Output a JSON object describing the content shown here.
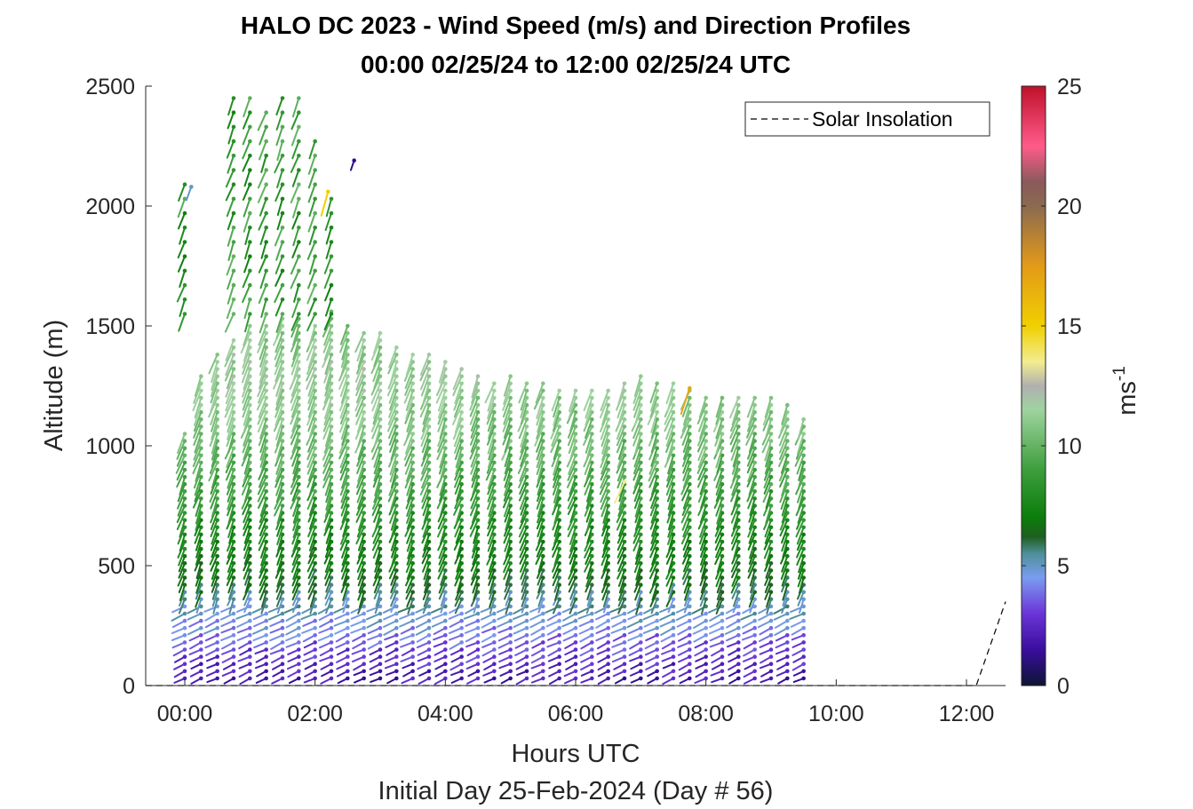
{
  "chart_data": {
    "type": "scatter",
    "subtype": "wind-barb-profile",
    "title": "HALO DC 2023 - Wind Speed (m/s) and Direction Profiles",
    "subtitle": "00:00 02/25/24 to 12:00 02/25/24  UTC",
    "xlabel": "Hours UTC",
    "xlabel2": "Initial Day 25-Feb-2024 (Day # 56)",
    "ylabel": "Altitude (m)",
    "x_ticks": [
      "00:00",
      "02:00",
      "04:00",
      "06:00",
      "08:00",
      "10:00",
      "12:00"
    ],
    "y_ticks": [
      "0",
      "500",
      "1000",
      "1500",
      "2000",
      "2500"
    ],
    "xlim_hours": [
      -0.6,
      12.6
    ],
    "ylim": [
      0,
      2500
    ],
    "colorbar": {
      "label": "ms",
      "label_exponent": "-1",
      "ticks": [
        "0",
        "5",
        "10",
        "15",
        "20",
        "25"
      ],
      "range": [
        0,
        25
      ],
      "stops": [
        {
          "v": 0,
          "c": "#0c1433"
        },
        {
          "v": 1.5,
          "c": "#3a0e9e"
        },
        {
          "v": 3,
          "c": "#6b34d8"
        },
        {
          "v": 4.5,
          "c": "#7a9cf0"
        },
        {
          "v": 5.5,
          "c": "#4f8f9a"
        },
        {
          "v": 6.2,
          "c": "#1f5f20"
        },
        {
          "v": 7,
          "c": "#0b7d0b"
        },
        {
          "v": 9,
          "c": "#3d9e3d"
        },
        {
          "v": 11.5,
          "c": "#9fd39f"
        },
        {
          "v": 12.5,
          "c": "#b0b0b0"
        },
        {
          "v": 13.5,
          "c": "#f3ec90"
        },
        {
          "v": 15,
          "c": "#f0d000"
        },
        {
          "v": 17.5,
          "c": "#e39a18"
        },
        {
          "v": 20,
          "c": "#8a6a50"
        },
        {
          "v": 21,
          "c": "#8a5a5a"
        },
        {
          "v": 22.5,
          "c": "#ff5b8a"
        },
        {
          "v": 25,
          "c": "#c0102a"
        }
      ]
    },
    "legend": {
      "entry": "Solar Insolation",
      "placement": "top-right",
      "line_style": "dashed"
    },
    "series": [
      {
        "name": "Solar Insolation",
        "x": [
          -0.6,
          12.15,
          12.6
        ],
        "y": [
          0,
          0,
          350
        ]
      }
    ],
    "profile_times_hours": [
      0.0,
      0.25,
      0.5,
      0.75,
      1.0,
      1.25,
      1.5,
      1.75,
      2.0,
      2.25,
      2.5,
      2.75,
      3.0,
      3.25,
      3.5,
      3.75,
      4.0,
      4.25,
      4.5,
      4.75,
      5.0,
      5.25,
      5.5,
      5.75,
      6.0,
      6.25,
      6.5,
      6.75,
      7.0,
      7.25,
      7.5,
      7.75,
      8.0,
      8.25,
      8.5,
      8.75,
      9.0,
      9.25,
      9.5
    ],
    "profile_top_altitude_m": [
      1050,
      1300,
      1400,
      1460,
      1500,
      1520,
      1540,
      1540,
      1520,
      1570,
      1500,
      1480,
      1490,
      1420,
      1400,
      1380,
      1360,
      1330,
      1300,
      1280,
      1290,
      1280,
      1260,
      1250,
      1250,
      1240,
      1240,
      1260,
      1300,
      1280,
      1260,
      1240,
      1220,
      1220,
      1210,
      1200,
      1200,
      1180,
      1120
    ],
    "upper_profile_times_hours": [
      0.0,
      0.75,
      1.0,
      1.25,
      1.5,
      1.75,
      2.0,
      2.25
    ],
    "upper_profile_top_altitude_m": [
      2130,
      2500,
      2460,
      2400,
      2480,
      2500,
      2300,
      2060
    ],
    "range_gate_spacing_m": 30,
    "speed_profile_m_per_s": [
      {
        "altitude_m": 30,
        "speed": 2
      },
      {
        "altitude_m": 150,
        "speed": 3
      },
      {
        "altitude_m": 250,
        "speed": 4.4
      },
      {
        "altitude_m": 350,
        "speed": 5.2
      },
      {
        "altitude_m": 450,
        "speed": 6.5
      },
      {
        "altitude_m": 700,
        "speed": 8
      },
      {
        "altitude_m": 1000,
        "speed": 10
      },
      {
        "altitude_m": 1300,
        "speed": 11.5
      },
      {
        "altitude_m": 2000,
        "speed": 9
      }
    ],
    "direction_note_deg": 225,
    "outliers": [
      {
        "time_hours": 6.75,
        "altitude_m": 850,
        "speed": 13.5
      },
      {
        "time_hours": 7.75,
        "altitude_m": 1240,
        "speed": 17
      },
      {
        "time_hours": 2.2,
        "altitude_m": 2060,
        "speed": 15
      },
      {
        "time_hours": 2.6,
        "altitude_m": 2190,
        "speed": 1.2
      },
      {
        "time_hours": 0.1,
        "altitude_m": 2080,
        "speed": 5
      }
    ]
  }
}
